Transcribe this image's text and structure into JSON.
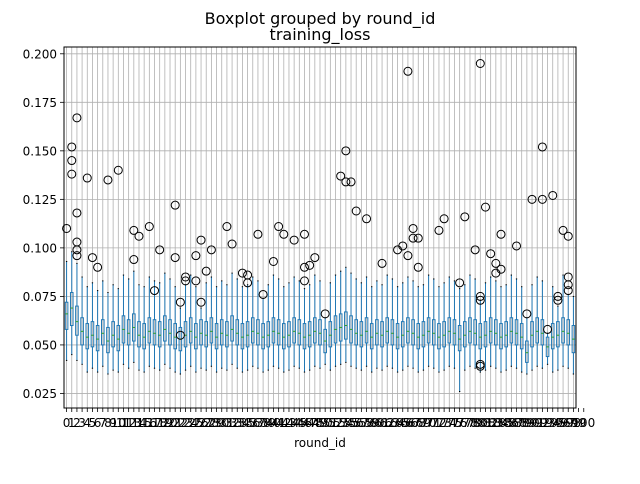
{
  "figure": {
    "suptitle": "Boxplot grouped by round_id",
    "title": "training_loss"
  },
  "chart_data": {
    "type": "boxplot",
    "title": "training_loss",
    "suptitle": "Boxplot grouped by round_id",
    "xlabel": "round_id",
    "ylabel": "",
    "ylim": [
      0.0175,
      0.2035
    ],
    "yticks": [
      0.025,
      0.05,
      0.075,
      0.1,
      0.125,
      0.15,
      0.175,
      0.2
    ],
    "ytick_labels": [
      "0.025",
      "0.050",
      "0.075",
      "0.100",
      "0.125",
      "0.150",
      "0.175",
      "0.200"
    ],
    "grid": true,
    "legend": "none",
    "n_groups": 101,
    "categories": [
      "0",
      "1",
      "2",
      "3",
      "4",
      "5",
      "6",
      "7",
      "8",
      "9",
      "10",
      "11",
      "12",
      "13",
      "14",
      "15",
      "16",
      "17",
      "18",
      "19",
      "20",
      "21",
      "22",
      "23",
      "24",
      "25",
      "26",
      "27",
      "28",
      "29",
      "30",
      "31",
      "32",
      "33",
      "34",
      "35",
      "36",
      "37",
      "38",
      "39",
      "40",
      "41",
      "42",
      "43",
      "44",
      "45",
      "46",
      "47",
      "48",
      "49",
      "50",
      "51",
      "52",
      "53",
      "54",
      "55",
      "56",
      "57",
      "58",
      "59",
      "60",
      "61",
      "62",
      "63",
      "64",
      "65",
      "66",
      "67",
      "68",
      "69",
      "70",
      "71",
      "72",
      "73",
      "74",
      "75",
      "76",
      "77",
      "78",
      "79",
      "80",
      "81",
      "82",
      "83",
      "84",
      "85",
      "86",
      "87",
      "88",
      "89",
      "90",
      "91",
      "92",
      "93",
      "94",
      "95",
      "96",
      "97",
      "98",
      "99",
      "100"
    ],
    "colors": {
      "box": "#1f77b4",
      "median": "#2ca02c",
      "flier": "#000000",
      "grid": "#b0b0b0"
    },
    "groups": [
      {
        "q1": 0.058,
        "median": 0.066,
        "q3": 0.072,
        "whislo": 0.042,
        "whishi": 0.093,
        "fliers": [
          0.11
        ]
      },
      {
        "q1": 0.06,
        "median": 0.069,
        "q3": 0.077,
        "whislo": 0.045,
        "whishi": 0.098,
        "fliers": [
          0.152,
          0.145,
          0.138
        ]
      },
      {
        "q1": 0.055,
        "median": 0.062,
        "q3": 0.07,
        "whislo": 0.042,
        "whishi": 0.092,
        "fliers": [
          0.167,
          0.118,
          0.103,
          0.099,
          0.096
        ]
      },
      {
        "q1": 0.05,
        "median": 0.057,
        "q3": 0.064,
        "whislo": 0.04,
        "whishi": 0.085,
        "fliers": []
      },
      {
        "q1": 0.048,
        "median": 0.054,
        "q3": 0.061,
        "whislo": 0.036,
        "whishi": 0.08,
        "fliers": [
          0.136
        ]
      },
      {
        "q1": 0.049,
        "median": 0.055,
        "q3": 0.062,
        "whislo": 0.038,
        "whishi": 0.082,
        "fliers": [
          0.095
        ]
      },
      {
        "q1": 0.047,
        "median": 0.053,
        "q3": 0.06,
        "whislo": 0.036,
        "whishi": 0.078,
        "fliers": [
          0.09
        ]
      },
      {
        "q1": 0.05,
        "median": 0.056,
        "q3": 0.063,
        "whislo": 0.039,
        "whishi": 0.083,
        "fliers": []
      },
      {
        "q1": 0.046,
        "median": 0.052,
        "q3": 0.059,
        "whislo": 0.035,
        "whishi": 0.077,
        "fliers": [
          0.135
        ]
      },
      {
        "q1": 0.049,
        "median": 0.055,
        "q3": 0.062,
        "whislo": 0.037,
        "whishi": 0.081,
        "fliers": []
      },
      {
        "q1": 0.047,
        "median": 0.053,
        "q3": 0.06,
        "whislo": 0.036,
        "whishi": 0.079,
        "fliers": [
          0.14
        ]
      },
      {
        "q1": 0.051,
        "median": 0.058,
        "q3": 0.065,
        "whislo": 0.04,
        "whishi": 0.086,
        "fliers": []
      },
      {
        "q1": 0.05,
        "median": 0.056,
        "q3": 0.063,
        "whislo": 0.038,
        "whishi": 0.084,
        "fliers": []
      },
      {
        "q1": 0.052,
        "median": 0.059,
        "q3": 0.066,
        "whislo": 0.041,
        "whishi": 0.088,
        "fliers": [
          0.109,
          0.094
        ]
      },
      {
        "q1": 0.049,
        "median": 0.055,
        "q3": 0.062,
        "whislo": 0.037,
        "whishi": 0.081,
        "fliers": [
          0.106
        ]
      },
      {
        "q1": 0.048,
        "median": 0.054,
        "q3": 0.061,
        "whislo": 0.036,
        "whishi": 0.08,
        "fliers": []
      },
      {
        "q1": 0.051,
        "median": 0.057,
        "q3": 0.064,
        "whislo": 0.039,
        "whishi": 0.085,
        "fliers": [
          0.111
        ]
      },
      {
        "q1": 0.05,
        "median": 0.056,
        "q3": 0.063,
        "whislo": 0.038,
        "whishi": 0.083,
        "fliers": [
          0.078
        ]
      },
      {
        "q1": 0.049,
        "median": 0.055,
        "q3": 0.062,
        "whislo": 0.037,
        "whishi": 0.082,
        "fliers": [
          0.099
        ]
      },
      {
        "q1": 0.052,
        "median": 0.058,
        "q3": 0.065,
        "whislo": 0.04,
        "whishi": 0.087,
        "fliers": []
      },
      {
        "q1": 0.05,
        "median": 0.056,
        "q3": 0.063,
        "whislo": 0.038,
        "whishi": 0.084,
        "fliers": []
      },
      {
        "q1": 0.048,
        "median": 0.054,
        "q3": 0.061,
        "whislo": 0.036,
        "whishi": 0.08,
        "fliers": [
          0.122,
          0.095
        ]
      },
      {
        "q1": 0.047,
        "median": 0.053,
        "q3": 0.059,
        "whislo": 0.035,
        "whishi": 0.069,
        "fliers": [
          0.072,
          0.055
        ]
      },
      {
        "q1": 0.049,
        "median": 0.055,
        "q3": 0.062,
        "whislo": 0.037,
        "whishi": 0.081,
        "fliers": [
          0.085,
          0.083
        ]
      },
      {
        "q1": 0.051,
        "median": 0.057,
        "q3": 0.064,
        "whislo": 0.039,
        "whishi": 0.086,
        "fliers": []
      },
      {
        "q1": 0.048,
        "median": 0.054,
        "q3": 0.061,
        "whislo": 0.036,
        "whishi": 0.08,
        "fliers": [
          0.096,
          0.083
        ]
      },
      {
        "q1": 0.05,
        "median": 0.056,
        "q3": 0.063,
        "whislo": 0.038,
        "whishi": 0.069,
        "fliers": [
          0.104,
          0.072
        ]
      },
      {
        "q1": 0.049,
        "median": 0.055,
        "q3": 0.062,
        "whislo": 0.037,
        "whishi": 0.082,
        "fliers": [
          0.088
        ]
      },
      {
        "q1": 0.051,
        "median": 0.057,
        "q3": 0.064,
        "whislo": 0.039,
        "whishi": 0.085,
        "fliers": [
          0.099
        ]
      },
      {
        "q1": 0.048,
        "median": 0.054,
        "q3": 0.061,
        "whislo": 0.036,
        "whishi": 0.08,
        "fliers": []
      },
      {
        "q1": 0.05,
        "median": 0.056,
        "q3": 0.063,
        "whislo": 0.038,
        "whishi": 0.083,
        "fliers": []
      },
      {
        "q1": 0.049,
        "median": 0.055,
        "q3": 0.062,
        "whislo": 0.037,
        "whishi": 0.081,
        "fliers": [
          0.111
        ]
      },
      {
        "q1": 0.052,
        "median": 0.058,
        "q3": 0.065,
        "whislo": 0.04,
        "whishi": 0.087,
        "fliers": [
          0.102
        ]
      },
      {
        "q1": 0.05,
        "median": 0.056,
        "q3": 0.063,
        "whislo": 0.038,
        "whishi": 0.084,
        "fliers": []
      },
      {
        "q1": 0.048,
        "median": 0.054,
        "q3": 0.061,
        "whislo": 0.036,
        "whishi": 0.08,
        "fliers": [
          0.087
        ]
      },
      {
        "q1": 0.049,
        "median": 0.055,
        "q3": 0.062,
        "whislo": 0.037,
        "whishi": 0.081,
        "fliers": [
          0.086,
          0.082
        ]
      },
      {
        "q1": 0.051,
        "median": 0.057,
        "q3": 0.064,
        "whislo": 0.039,
        "whishi": 0.085,
        "fliers": []
      },
      {
        "q1": 0.05,
        "median": 0.056,
        "q3": 0.063,
        "whislo": 0.038,
        "whishi": 0.083,
        "fliers": [
          0.107
        ]
      },
      {
        "q1": 0.048,
        "median": 0.054,
        "q3": 0.061,
        "whislo": 0.036,
        "whishi": 0.074,
        "fliers": [
          0.076
        ]
      },
      {
        "q1": 0.049,
        "median": 0.055,
        "q3": 0.062,
        "whislo": 0.037,
        "whishi": 0.081,
        "fliers": []
      },
      {
        "q1": 0.051,
        "median": 0.057,
        "q3": 0.064,
        "whislo": 0.039,
        "whishi": 0.086,
        "fliers": [
          0.093
        ]
      },
      {
        "q1": 0.05,
        "median": 0.056,
        "q3": 0.063,
        "whislo": 0.038,
        "whishi": 0.084,
        "fliers": [
          0.111
        ]
      },
      {
        "q1": 0.048,
        "median": 0.054,
        "q3": 0.061,
        "whislo": 0.036,
        "whishi": 0.08,
        "fliers": [
          0.107
        ]
      },
      {
        "q1": 0.049,
        "median": 0.055,
        "q3": 0.062,
        "whislo": 0.037,
        "whishi": 0.082,
        "fliers": []
      },
      {
        "q1": 0.051,
        "median": 0.057,
        "q3": 0.064,
        "whislo": 0.039,
        "whishi": 0.085,
        "fliers": [
          0.104
        ]
      },
      {
        "q1": 0.05,
        "median": 0.056,
        "q3": 0.063,
        "whislo": 0.038,
        "whishi": 0.083,
        "fliers": []
      },
      {
        "q1": 0.048,
        "median": 0.054,
        "q3": 0.061,
        "whislo": 0.036,
        "whishi": 0.079,
        "fliers": [
          0.107,
          0.09,
          0.083
        ]
      },
      {
        "q1": 0.049,
        "median": 0.055,
        "q3": 0.062,
        "whislo": 0.037,
        "whishi": 0.081,
        "fliers": [
          0.091
        ]
      },
      {
        "q1": 0.051,
        "median": 0.057,
        "q3": 0.064,
        "whislo": 0.039,
        "whishi": 0.086,
        "fliers": [
          0.095
        ]
      },
      {
        "q1": 0.05,
        "median": 0.056,
        "q3": 0.063,
        "whislo": 0.038,
        "whishi": 0.083,
        "fliers": []
      },
      {
        "q1": 0.046,
        "median": 0.052,
        "q3": 0.058,
        "whislo": 0.04,
        "whishi": 0.064,
        "fliers": [
          0.066
        ]
      },
      {
        "q1": 0.049,
        "median": 0.055,
        "q3": 0.062,
        "whislo": 0.037,
        "whishi": 0.082,
        "fliers": []
      },
      {
        "q1": 0.051,
        "median": 0.058,
        "q3": 0.065,
        "whislo": 0.039,
        "whishi": 0.086,
        "fliers": []
      },
      {
        "q1": 0.052,
        "median": 0.059,
        "q3": 0.066,
        "whislo": 0.04,
        "whishi": 0.088,
        "fliers": [
          0.137
        ]
      },
      {
        "q1": 0.053,
        "median": 0.06,
        "q3": 0.067,
        "whislo": 0.041,
        "whishi": 0.09,
        "fliers": [
          0.15,
          0.134
        ]
      },
      {
        "q1": 0.051,
        "median": 0.058,
        "q3": 0.065,
        "whislo": 0.039,
        "whishi": 0.087,
        "fliers": [
          0.134
        ]
      },
      {
        "q1": 0.05,
        "median": 0.056,
        "q3": 0.063,
        "whislo": 0.038,
        "whishi": 0.084,
        "fliers": [
          0.119
        ]
      },
      {
        "q1": 0.049,
        "median": 0.055,
        "q3": 0.062,
        "whislo": 0.037,
        "whishi": 0.082,
        "fliers": []
      },
      {
        "q1": 0.051,
        "median": 0.057,
        "q3": 0.064,
        "whislo": 0.039,
        "whishi": 0.085,
        "fliers": [
          0.115
        ]
      },
      {
        "q1": 0.048,
        "median": 0.054,
        "q3": 0.061,
        "whislo": 0.036,
        "whishi": 0.08,
        "fliers": []
      },
      {
        "q1": 0.05,
        "median": 0.056,
        "q3": 0.063,
        "whislo": 0.038,
        "whishi": 0.083,
        "fliers": []
      },
      {
        "q1": 0.049,
        "median": 0.055,
        "q3": 0.062,
        "whislo": 0.037,
        "whishi": 0.081,
        "fliers": [
          0.092
        ]
      },
      {
        "q1": 0.051,
        "median": 0.057,
        "q3": 0.064,
        "whislo": 0.039,
        "whishi": 0.086,
        "fliers": []
      },
      {
        "q1": 0.05,
        "median": 0.056,
        "q3": 0.063,
        "whislo": 0.038,
        "whishi": 0.084,
        "fliers": []
      },
      {
        "q1": 0.048,
        "median": 0.054,
        "q3": 0.061,
        "whislo": 0.036,
        "whishi": 0.08,
        "fliers": [
          0.099
        ]
      },
      {
        "q1": 0.049,
        "median": 0.055,
        "q3": 0.062,
        "whislo": 0.037,
        "whishi": 0.082,
        "fliers": [
          0.101
        ]
      },
      {
        "q1": 0.051,
        "median": 0.057,
        "q3": 0.064,
        "whislo": 0.039,
        "whishi": 0.085,
        "fliers": [
          0.191,
          0.096
        ]
      },
      {
        "q1": 0.05,
        "median": 0.056,
        "q3": 0.063,
        "whislo": 0.038,
        "whishi": 0.083,
        "fliers": [
          0.11,
          0.105
        ]
      },
      {
        "q1": 0.048,
        "median": 0.054,
        "q3": 0.061,
        "whislo": 0.036,
        "whishi": 0.08,
        "fliers": [
          0.105,
          0.09
        ]
      },
      {
        "q1": 0.049,
        "median": 0.055,
        "q3": 0.062,
        "whislo": 0.037,
        "whishi": 0.081,
        "fliers": []
      },
      {
        "q1": 0.051,
        "median": 0.057,
        "q3": 0.064,
        "whislo": 0.039,
        "whishi": 0.086,
        "fliers": []
      },
      {
        "q1": 0.05,
        "median": 0.056,
        "q3": 0.063,
        "whislo": 0.038,
        "whishi": 0.084,
        "fliers": []
      },
      {
        "q1": 0.048,
        "median": 0.054,
        "q3": 0.061,
        "whislo": 0.036,
        "whishi": 0.08,
        "fliers": [
          0.109
        ]
      },
      {
        "q1": 0.049,
        "median": 0.055,
        "q3": 0.062,
        "whislo": 0.037,
        "whishi": 0.082,
        "fliers": [
          0.115
        ]
      },
      {
        "q1": 0.051,
        "median": 0.057,
        "q3": 0.064,
        "whislo": 0.039,
        "whishi": 0.085,
        "fliers": []
      },
      {
        "q1": 0.05,
        "median": 0.056,
        "q3": 0.063,
        "whislo": 0.038,
        "whishi": 0.083,
        "fliers": []
      },
      {
        "q1": 0.047,
        "median": 0.053,
        "q3": 0.06,
        "whislo": 0.026,
        "whishi": 0.079,
        "fliers": [
          0.082
        ]
      },
      {
        "q1": 0.049,
        "median": 0.055,
        "q3": 0.062,
        "whislo": 0.037,
        "whishi": 0.081,
        "fliers": [
          0.116
        ]
      },
      {
        "q1": 0.051,
        "median": 0.057,
        "q3": 0.064,
        "whislo": 0.039,
        "whishi": 0.086,
        "fliers": []
      },
      {
        "q1": 0.05,
        "median": 0.056,
        "q3": 0.063,
        "whislo": 0.038,
        "whishi": 0.084,
        "fliers": [
          0.099
        ]
      },
      {
        "q1": 0.048,
        "median": 0.054,
        "q3": 0.061,
        "whislo": 0.036,
        "whishi": 0.073,
        "fliers": [
          0.195,
          0.075,
          0.073,
          0.04,
          0.039
        ]
      },
      {
        "q1": 0.049,
        "median": 0.055,
        "q3": 0.062,
        "whislo": 0.037,
        "whishi": 0.082,
        "fliers": [
          0.121
        ]
      },
      {
        "q1": 0.051,
        "median": 0.057,
        "q3": 0.064,
        "whislo": 0.039,
        "whishi": 0.085,
        "fliers": [
          0.097
        ]
      },
      {
        "q1": 0.05,
        "median": 0.056,
        "q3": 0.063,
        "whislo": 0.038,
        "whishi": 0.083,
        "fliers": [
          0.092,
          0.087
        ]
      },
      {
        "q1": 0.048,
        "median": 0.054,
        "q3": 0.061,
        "whislo": 0.036,
        "whishi": 0.08,
        "fliers": [
          0.107,
          0.089
        ]
      },
      {
        "q1": 0.049,
        "median": 0.055,
        "q3": 0.062,
        "whislo": 0.037,
        "whishi": 0.081,
        "fliers": []
      },
      {
        "q1": 0.051,
        "median": 0.057,
        "q3": 0.064,
        "whislo": 0.039,
        "whishi": 0.086,
        "fliers": []
      },
      {
        "q1": 0.05,
        "median": 0.056,
        "q3": 0.063,
        "whislo": 0.038,
        "whishi": 0.084,
        "fliers": [
          0.101
        ]
      },
      {
        "q1": 0.048,
        "median": 0.054,
        "q3": 0.061,
        "whislo": 0.036,
        "whishi": 0.08,
        "fliers": []
      },
      {
        "q1": 0.041,
        "median": 0.046,
        "q3": 0.052,
        "whislo": 0.035,
        "whishi": 0.064,
        "fliers": [
          0.066
        ]
      },
      {
        "q1": 0.049,
        "median": 0.055,
        "q3": 0.062,
        "whislo": 0.037,
        "whishi": 0.081,
        "fliers": [
          0.125
        ]
      },
      {
        "q1": 0.051,
        "median": 0.057,
        "q3": 0.064,
        "whislo": 0.039,
        "whishi": 0.085,
        "fliers": []
      },
      {
        "q1": 0.05,
        "median": 0.056,
        "q3": 0.063,
        "whislo": 0.038,
        "whishi": 0.083,
        "fliers": [
          0.152,
          0.125
        ]
      },
      {
        "q1": 0.044,
        "median": 0.049,
        "q3": 0.054,
        "whislo": 0.04,
        "whishi": 0.056,
        "fliers": [
          0.058
        ]
      },
      {
        "q1": 0.048,
        "median": 0.054,
        "q3": 0.061,
        "whislo": 0.036,
        "whishi": 0.08,
        "fliers": [
          0.127
        ]
      },
      {
        "q1": 0.049,
        "median": 0.055,
        "q3": 0.062,
        "whislo": 0.037,
        "whishi": 0.07,
        "fliers": [
          0.075,
          0.073
        ]
      },
      {
        "q1": 0.051,
        "median": 0.057,
        "q3": 0.064,
        "whislo": 0.039,
        "whishi": 0.086,
        "fliers": [
          0.109
        ]
      },
      {
        "q1": 0.05,
        "median": 0.056,
        "q3": 0.063,
        "whislo": 0.038,
        "whishi": 0.076,
        "fliers": [
          0.106,
          0.085,
          0.081,
          0.078
        ]
      },
      {
        "q1": 0.046,
        "median": 0.053,
        "q3": 0.06,
        "whislo": 0.035,
        "whishi": 0.075,
        "fliers": []
      }
    ]
  }
}
